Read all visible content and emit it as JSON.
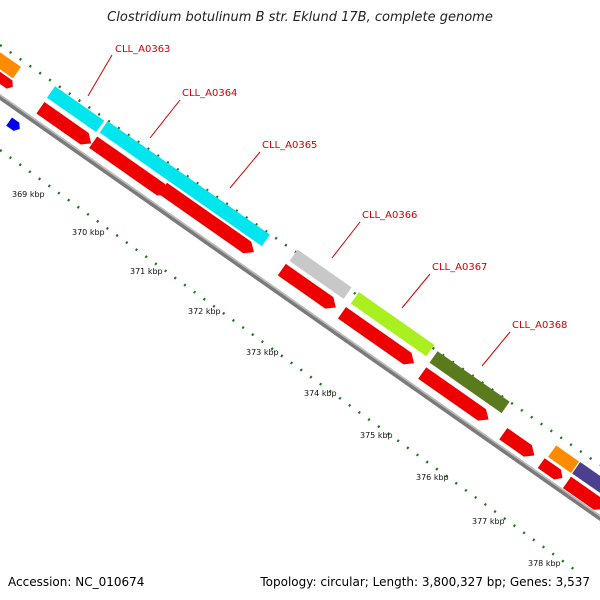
{
  "title": "Clostridium botulinum B str. Eklund 17B, complete genome",
  "footer": {
    "accession": "Accession: NC_010674",
    "summary": "Topology: circular; Length: 3,800,327 bp; Genes: 3,537"
  },
  "ticks": [
    "369 kbp",
    "370 kbp",
    "371 kbp",
    "372 kbp",
    "373 kbp",
    "374 kbp",
    "375 kbp",
    "376 kbp",
    "377 kbp",
    "378 kbp"
  ],
  "gene_labels": [
    "CLL_A0363",
    "CLL_A0364",
    "CLL_A0365",
    "CLL_A0366",
    "CLL_A0367",
    "CLL_A0368"
  ],
  "colors": {
    "backbone": "#8a8a8a",
    "cds": "#ee0000",
    "tick": "#1a7a1a",
    "label": "#d40000",
    "cyan": "#00e5ee",
    "grey": "#c8c8c8",
    "lime": "#aaf020",
    "olive": "#5a7a1e",
    "orange": "#ff8c00",
    "purple": "#4b3f8f",
    "blue": "#0000ee"
  }
}
